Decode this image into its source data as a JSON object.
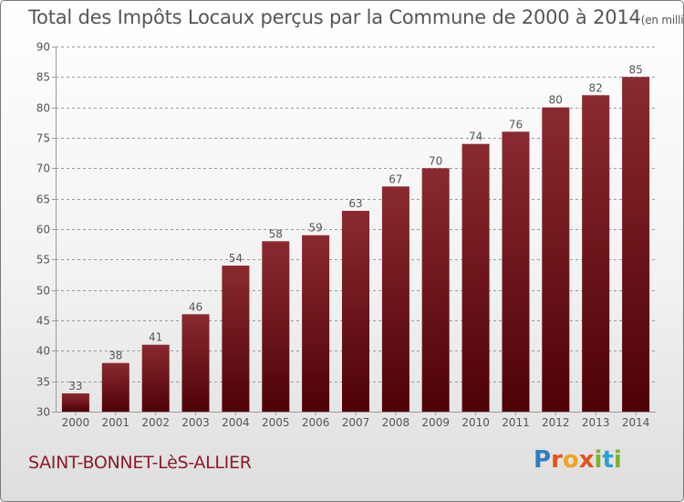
{
  "header": {
    "title": "Total des Impôts Locaux perçus par la Commune de 2000 à 2014",
    "unit": "(en milliers d'€)"
  },
  "footer": {
    "commune": "SAINT-BONNET-LèS-ALLIER",
    "logo_letters": [
      "P",
      "r",
      "o",
      "x",
      "i",
      "t",
      "i"
    ],
    "logo_colors": [
      "#2f7ec2",
      "#e3531e",
      "#f2a21b",
      "#e3531e",
      "#7db22f",
      "#2f9fd0",
      "#7db22f"
    ]
  },
  "colors": {
    "bar_top": "#8a2a30",
    "bar_bottom": "#4e0205",
    "text": "#555555",
    "grid": "#9a9a9a",
    "commune": "#8b1a2a"
  },
  "chart_data": {
    "type": "bar",
    "title": "Total des Impôts Locaux perçus par la Commune de 2000 à 2014",
    "xlabel": "",
    "ylabel": "",
    "unit": "milliers d'€",
    "categories": [
      "2000",
      "2001",
      "2002",
      "2003",
      "2004",
      "2005",
      "2006",
      "2007",
      "2008",
      "2009",
      "2010",
      "2011",
      "2012",
      "2013",
      "2014"
    ],
    "values": [
      33,
      38,
      41,
      46,
      54,
      58,
      59,
      63,
      67,
      70,
      74,
      76,
      80,
      82,
      85
    ],
    "ylim": [
      30,
      90
    ],
    "yticks": [
      30,
      35,
      40,
      45,
      50,
      55,
      60,
      65,
      70,
      75,
      80,
      85,
      90
    ],
    "grid": true,
    "data_labels": true
  }
}
